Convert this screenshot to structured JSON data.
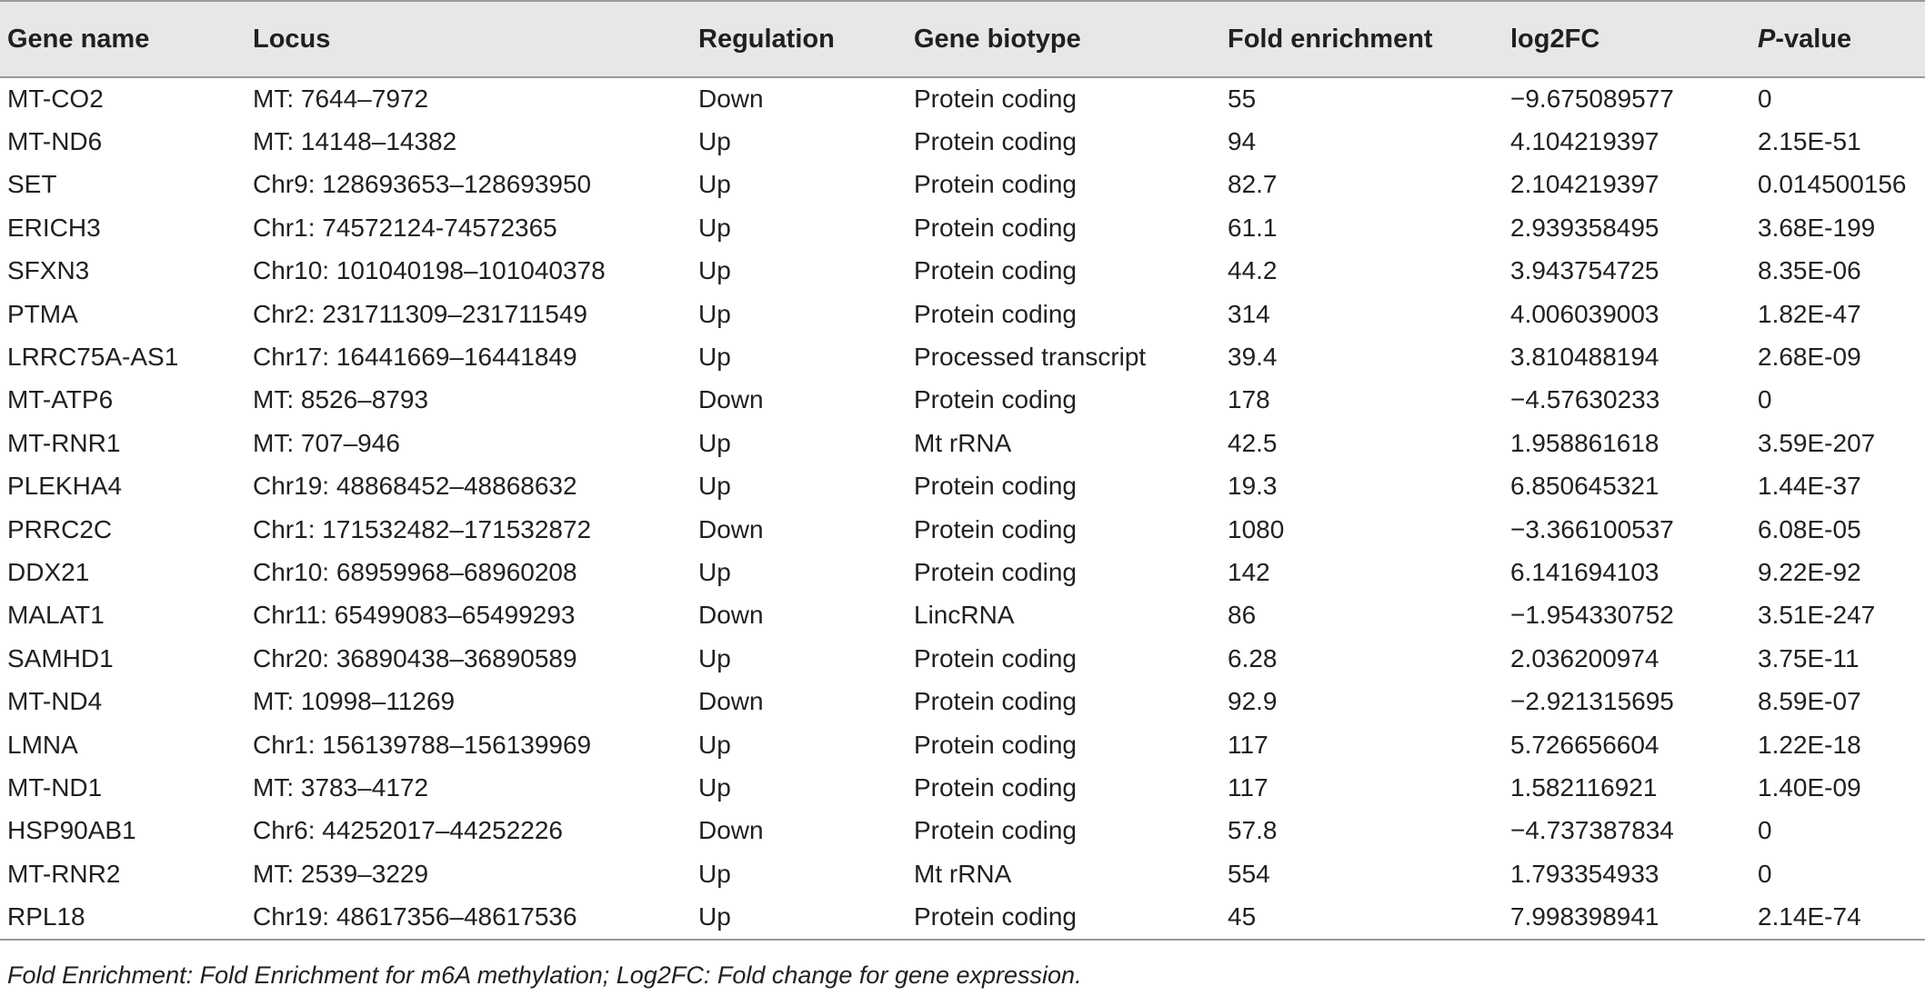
{
  "table": {
    "headers": {
      "gene_name": "Gene name",
      "locus": "Locus",
      "regulation": "Regulation",
      "gene_biotype": "Gene biotype",
      "fold_enrichment": "Fold enrichment",
      "log2fc": "log2FC",
      "p_italic": "P",
      "p_rest": "-value"
    },
    "rows": [
      [
        "MT-CO2",
        "MT: 7644–7972",
        "Down",
        "Protein coding",
        "55",
        "−9.675089577",
        "0"
      ],
      [
        "MT-ND6",
        "MT: 14148–14382",
        "Up",
        "Protein coding",
        "94",
        "4.104219397",
        "2.15E-51"
      ],
      [
        "SET",
        "Chr9: 128693653–128693950",
        "Up",
        "Protein coding",
        "82.7",
        "2.104219397",
        "0.014500156"
      ],
      [
        "ERICH3",
        "Chr1: 74572124-74572365",
        "Up",
        "Protein coding",
        "61.1",
        "2.939358495",
        "3.68E-199"
      ],
      [
        "SFXN3",
        "Chr10: 101040198–101040378",
        "Up",
        "Protein coding",
        "44.2",
        "3.943754725",
        "8.35E-06"
      ],
      [
        "PTMA",
        "Chr2: 231711309–231711549",
        "Up",
        "Protein coding",
        "314",
        "4.006039003",
        "1.82E-47"
      ],
      [
        "LRRC75A-AS1",
        "Chr17: 16441669–16441849",
        "Up",
        "Processed transcript",
        "39.4",
        "3.810488194",
        "2.68E-09"
      ],
      [
        "MT-ATP6",
        "MT: 8526–8793",
        "Down",
        "Protein coding",
        "178",
        "−4.57630233",
        "0"
      ],
      [
        "MT-RNR1",
        "MT: 707–946",
        "Up",
        "Mt rRNA",
        "42.5",
        "1.958861618",
        "3.59E-207"
      ],
      [
        "PLEKHA4",
        "Chr19: 48868452–48868632",
        "Up",
        "Protein coding",
        "19.3",
        "6.850645321",
        "1.44E-37"
      ],
      [
        "PRRC2C",
        "Chr1: 171532482–171532872",
        "Down",
        "Protein coding",
        "1080",
        "−3.366100537",
        "6.08E-05"
      ],
      [
        "DDX21",
        "Chr10: 68959968–68960208",
        "Up",
        "Protein coding",
        "142",
        "6.141694103",
        "9.22E-92"
      ],
      [
        "MALAT1",
        "Chr11: 65499083–65499293",
        "Down",
        "LincRNA",
        "86",
        "−1.954330752",
        "3.51E-247"
      ],
      [
        "SAMHD1",
        "Chr20: 36890438–36890589",
        "Up",
        "Protein coding",
        "6.28",
        "2.036200974",
        "3.75E-11"
      ],
      [
        "MT-ND4",
        "MT: 10998–11269",
        "Down",
        "Protein coding",
        "92.9",
        "−2.921315695",
        "8.59E-07"
      ],
      [
        "LMNA",
        "Chr1: 156139788–156139969",
        "Up",
        "Protein coding",
        "117",
        "5.726656604",
        "1.22E-18"
      ],
      [
        "MT-ND1",
        "MT: 3783–4172",
        "Up",
        "Protein coding",
        "117",
        "1.582116921",
        "1.40E-09"
      ],
      [
        "HSP90AB1",
        "Chr6: 44252017–44252226",
        "Down",
        "Protein coding",
        "57.8",
        "−4.737387834",
        "0"
      ],
      [
        "MT-RNR2",
        "MT: 2539–3229",
        "Up",
        "Mt rRNA",
        "554",
        "1.793354933",
        "0"
      ],
      [
        "RPL18",
        "Chr19: 48617356–48617536",
        "Up",
        "Protein coding",
        "45",
        "7.998398941",
        "2.14E-74"
      ]
    ]
  },
  "footnote": "Fold Enrichment: Fold Enrichment for m6A methylation; Log2FC: Fold change for gene expression.",
  "colors": {
    "header_background": "#e6e7e8",
    "rule": "#9a9a9a",
    "text": "#231f20"
  }
}
